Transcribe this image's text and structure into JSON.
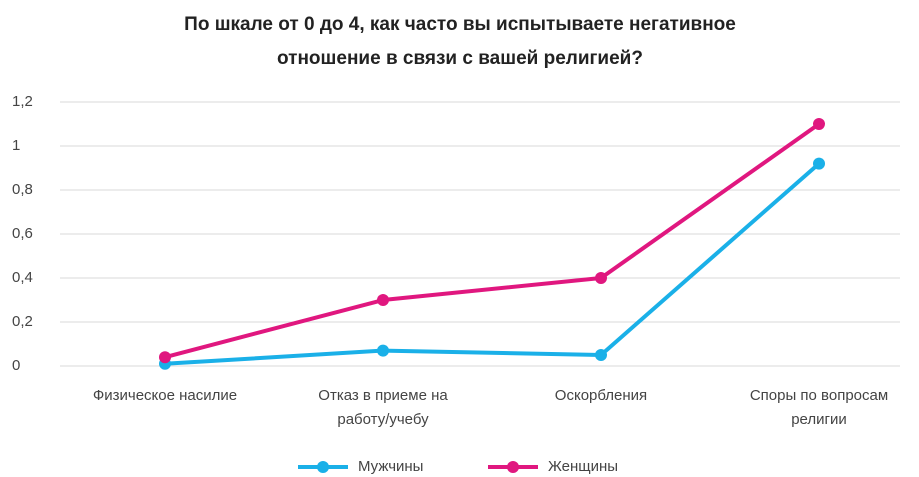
{
  "chart_data": {
    "type": "line",
    "title": "По шкале от 0 до 4, как часто вы испытываете негативное отношение в связи с вашей религией?",
    "categories": [
      "Физическое насилие",
      "Отказ в приеме на работу/учебу",
      "Оскорбления",
      "Споры по вопросам религии"
    ],
    "series": [
      {
        "name": "Мужчины",
        "color": "#1ab0e8",
        "values": [
          0.01,
          0.07,
          0.05,
          0.92
        ]
      },
      {
        "name": "Женщины",
        "color": "#e0177f",
        "values": [
          0.04,
          0.3,
          0.4,
          1.1
        ]
      }
    ],
    "ylim": [
      0,
      1.2
    ],
    "yticks": [
      0,
      {
        "value": 0.2,
        "label": "0,2"
      },
      {
        "value": 0.4,
        "label": "0,4"
      },
      {
        "value": 0.6,
        "label": "0,6"
      },
      {
        "value": 0.8,
        "label": "0,8"
      },
      1,
      {
        "value": 1.2,
        "label": "1,2"
      }
    ],
    "grid": true
  }
}
